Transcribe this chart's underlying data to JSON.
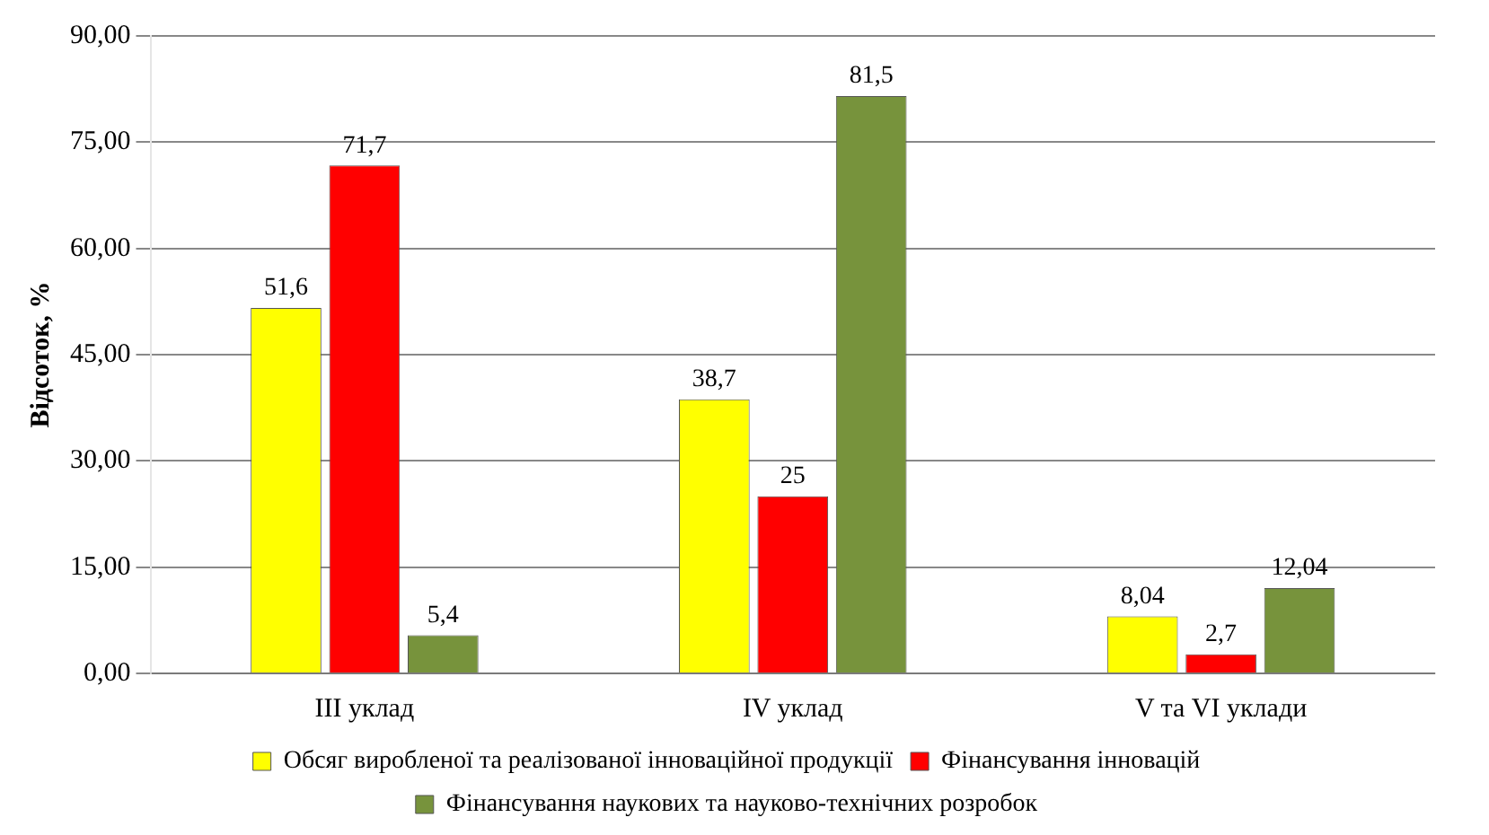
{
  "chart_data": {
    "type": "bar",
    "ylabel": "Відсоток, %",
    "categories": [
      "III уклад",
      "IV уклад",
      "V та VI уклади"
    ],
    "series": [
      {
        "name": "Обсяг виробленої та реалізованої інноваційної продукції",
        "color": "#ffff00",
        "values": [
          51.6,
          38.7,
          8.04
        ],
        "value_labels": [
          "51,6",
          "38,7",
          "8,04"
        ]
      },
      {
        "name": "Фінансування інновацій",
        "color": "#ff0000",
        "values": [
          71.7,
          25,
          2.7
        ],
        "value_labels": [
          "71,7",
          "25",
          "2,7"
        ]
      },
      {
        "name": "Фінансування наукових та науково-технічних розробок",
        "color": "#77933c",
        "values": [
          5.4,
          81.5,
          12.04
        ],
        "value_labels": [
          "5,4",
          "81,5",
          "12,04"
        ]
      }
    ],
    "ylim": [
      0,
      90
    ],
    "yticks": [
      {
        "value": 0,
        "label": "0,00"
      },
      {
        "value": 15,
        "label": "15,00"
      },
      {
        "value": 30,
        "label": "30,00"
      },
      {
        "value": 45,
        "label": "45,00"
      },
      {
        "value": 60,
        "label": "60,00"
      },
      {
        "value": 75,
        "label": "75,00"
      },
      {
        "value": 90,
        "label": "90,00"
      }
    ],
    "grid": "y",
    "legend": "bottom"
  }
}
